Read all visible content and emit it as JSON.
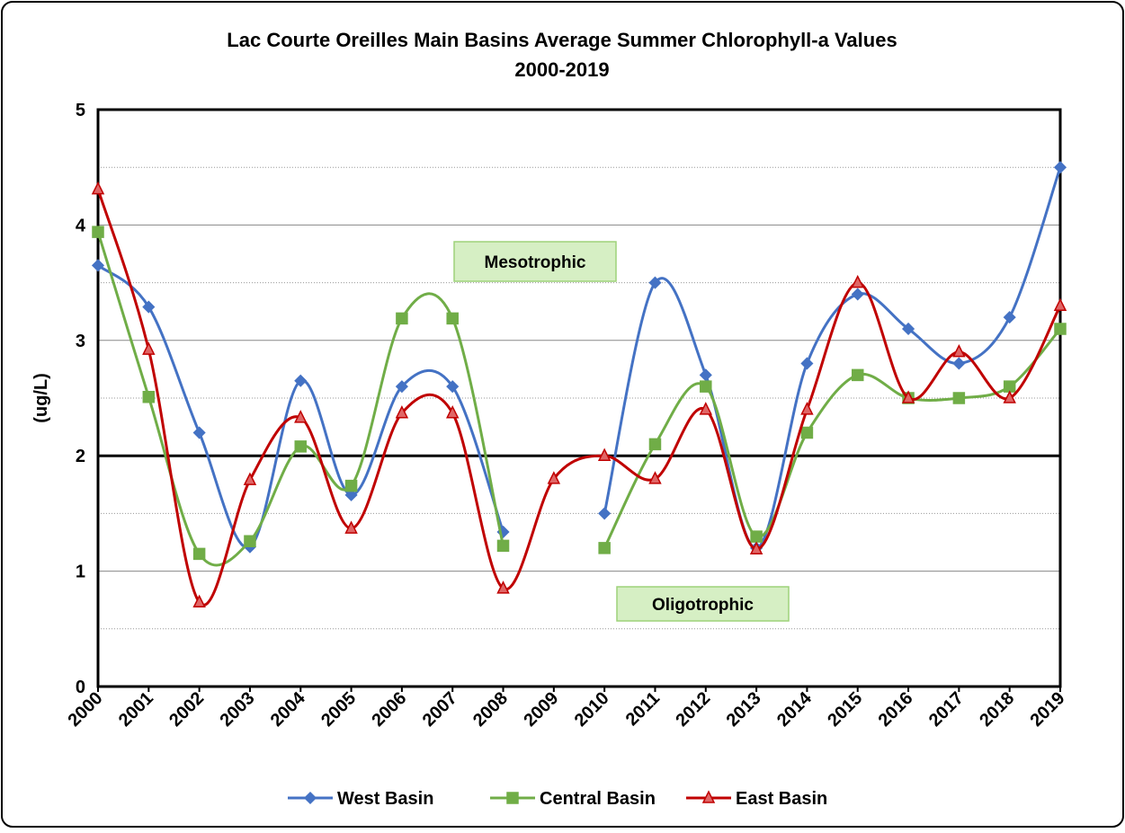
{
  "chart_data": {
    "type": "line",
    "title": "Lac Courte Oreilles Main Basins Average Summer Chlorophyll-a Values",
    "subtitle": "2000-2019",
    "y_label": "(ug/L)",
    "categories": [
      "2000",
      "2001",
      "2002",
      "2003",
      "2004",
      "2005",
      "2006",
      "2007",
      "2008",
      "2009",
      "2010",
      "2011",
      "2012",
      "2013",
      "2014",
      "2015",
      "2016",
      "2017",
      "2018",
      "2019"
    ],
    "series": [
      {
        "name": "West Basin",
        "color": "#4472c4",
        "marker": "diamond",
        "values": [
          3.65,
          3.29,
          2.2,
          1.21,
          2.65,
          1.66,
          2.6,
          2.6,
          1.34,
          null,
          1.5,
          3.5,
          2.7,
          1.2,
          2.8,
          3.4,
          3.1,
          2.8,
          3.2,
          4.5
        ]
      },
      {
        "name": "Central Basin",
        "color": "#70ad47",
        "marker": "square",
        "values": [
          3.94,
          2.51,
          1.15,
          1.26,
          2.08,
          1.74,
          3.19,
          3.19,
          1.22,
          null,
          1.2,
          2.1,
          2.6,
          1.3,
          2.2,
          2.7,
          2.5,
          2.5,
          2.6,
          3.1
        ]
      },
      {
        "name": "East Basin",
        "color": "#c00000",
        "marker": "triangle",
        "values": [
          4.31,
          2.92,
          0.73,
          1.79,
          2.33,
          1.37,
          2.37,
          2.37,
          0.85,
          1.8,
          2.0,
          1.8,
          2.4,
          1.19,
          2.4,
          3.5,
          2.5,
          2.9,
          2.5,
          3.3
        ]
      }
    ],
    "ylim": [
      0,
      5
    ],
    "yticks": [
      0,
      1,
      2,
      3,
      4,
      5
    ],
    "minor_yticks": [
      0.5,
      1.5,
      2.5,
      3.5,
      4.5
    ],
    "threshold": 2,
    "annotations": [
      "Mesotrophic",
      "Oligotrophic"
    ],
    "smooth": true,
    "grid": true,
    "legend": "bottom"
  }
}
